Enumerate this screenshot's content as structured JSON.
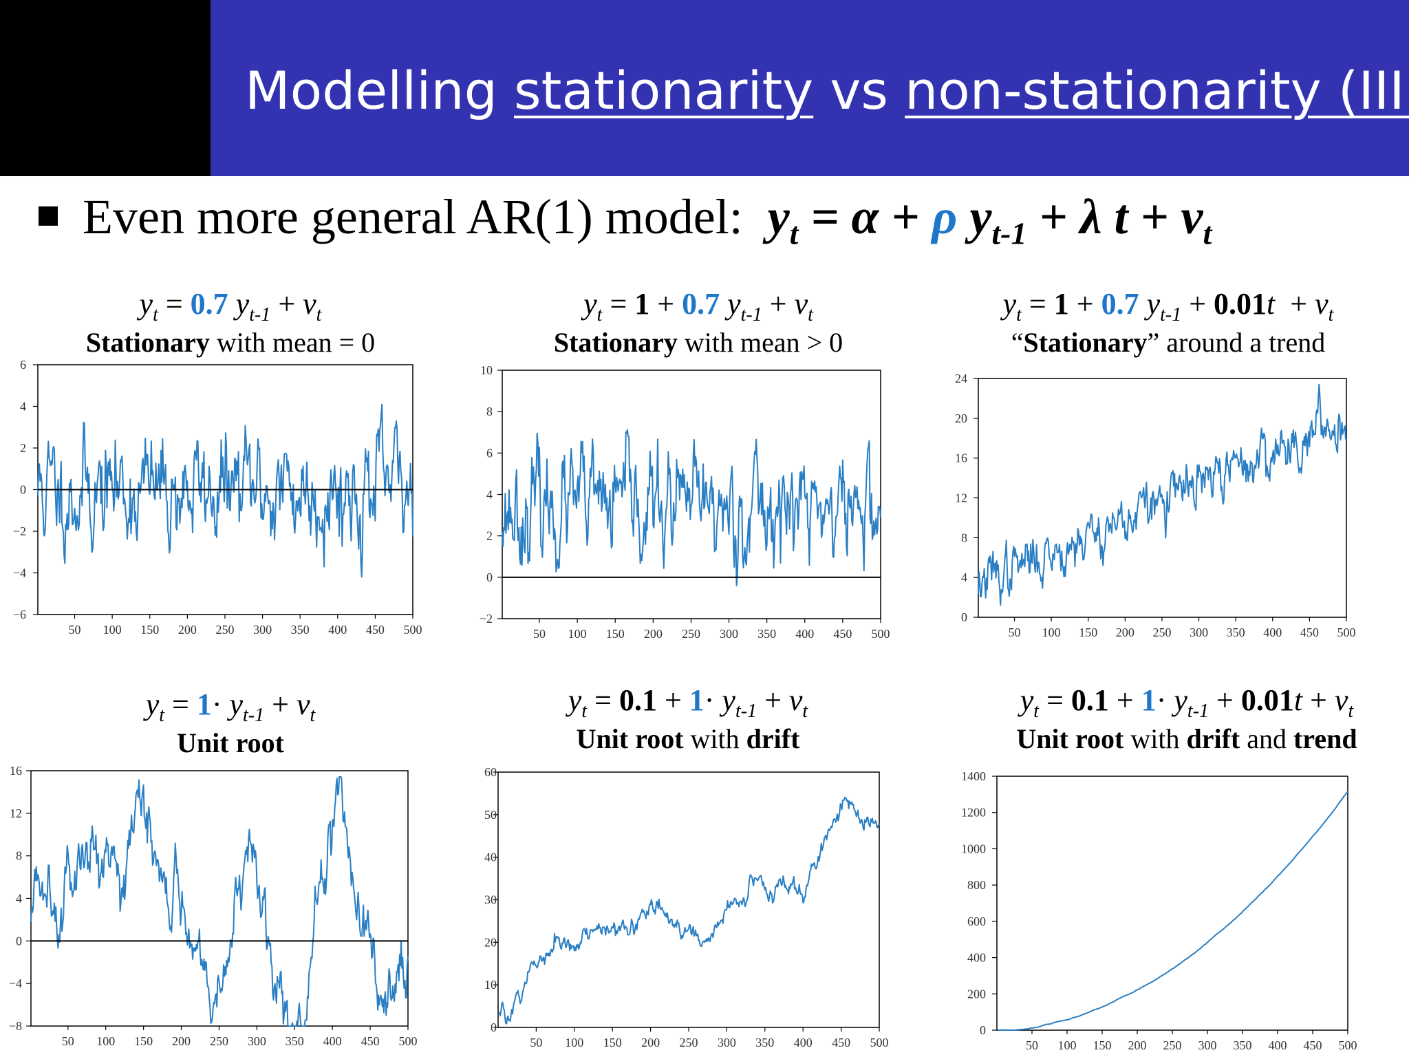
{
  "title": {
    "part1": "Modelling ",
    "u1": "stationarity",
    "part2": " vs ",
    "u2": "non-stationarity (III)"
  },
  "bullet": {
    "text": "Even more general AR(1) model:"
  },
  "colors": {
    "header": "#3333b2",
    "blue": "#1f77c9",
    "series": "#2a7fc4"
  },
  "panels": [
    {
      "desc": {
        "b1": "Stationary",
        "t1": " with mean = 0"
      }
    },
    {
      "desc": {
        "b1": "Stationary",
        "t1": " with mean > 0"
      }
    },
    {
      "desc": {
        "t0": "“",
        "b1": "Stationary",
        "t1": "” around a trend"
      }
    },
    {
      "desc": {
        "b1": "Unit root"
      }
    },
    {
      "desc": {
        "b1": "Unit root",
        "t1": " with ",
        "b2": "drift"
      }
    },
    {
      "desc": {
        "b1": "Unit root",
        "t1": " with ",
        "b2": "drift",
        "t2": " and ",
        "b3": "trend"
      }
    }
  ],
  "chart_data": [
    {
      "type": "line",
      "equation": {
        "rho": "0.7"
      },
      "x": [
        1,
        500
      ],
      "xticks": [
        50,
        100,
        150,
        200,
        250,
        300,
        350,
        400,
        450,
        500
      ],
      "yticks": [
        -6,
        -4,
        -2,
        0,
        2,
        4,
        6
      ],
      "ylim": [
        -6,
        6
      ],
      "zero_line": true,
      "gen": {
        "a": 0,
        "rho": 0.7,
        "lam": 0,
        "sd": 1,
        "y0": 0,
        "seed": 11
      }
    },
    {
      "type": "line",
      "equation": {
        "alpha": "1",
        "rho": "0.7"
      },
      "x": [
        1,
        500
      ],
      "xticks": [
        50,
        100,
        150,
        200,
        250,
        300,
        350,
        400,
        450,
        500
      ],
      "yticks": [
        -2,
        0,
        2,
        4,
        6,
        8,
        10
      ],
      "ylim": [
        -2,
        10
      ],
      "zero_line": true,
      "gen": {
        "a": 1,
        "rho": 0.7,
        "lam": 0,
        "sd": 1,
        "y0": 3.3,
        "seed": 23
      }
    },
    {
      "type": "line",
      "equation": {
        "alpha": "1",
        "rho": "0.7",
        "lambda": "0.01"
      },
      "x": [
        1,
        500
      ],
      "xticks": [
        50,
        100,
        150,
        200,
        250,
        300,
        350,
        400,
        450,
        500
      ],
      "yticks": [
        0,
        4,
        8,
        12,
        16,
        20,
        24
      ],
      "ylim": [
        0,
        24
      ],
      "zero_line": false,
      "gen": {
        "a": 1,
        "rho": 0.7,
        "lam": 0.01,
        "sd": 1,
        "y0": 3.5,
        "seed": 37
      }
    },
    {
      "type": "line",
      "equation": {
        "rho": "1"
      },
      "x": [
        1,
        500
      ],
      "xticks": [
        50,
        100,
        150,
        200,
        250,
        300,
        350,
        400,
        450,
        500
      ],
      "yticks": [
        -8,
        -4,
        0,
        4,
        8,
        12,
        16
      ],
      "ylim": [
        -8,
        16
      ],
      "zero_line": true,
      "anchors": [
        [
          1,
          2
        ],
        [
          40,
          10
        ],
        [
          70,
          7
        ],
        [
          110,
          12
        ],
        [
          160,
          9
        ],
        [
          200,
          8
        ],
        [
          215,
          1
        ],
        [
          240,
          -4
        ],
        [
          270,
          1
        ],
        [
          300,
          6
        ],
        [
          320,
          -1
        ],
        [
          345,
          -5
        ],
        [
          365,
          -7
        ],
        [
          385,
          5
        ],
        [
          410,
          10
        ],
        [
          440,
          2
        ],
        [
          470,
          -5
        ],
        [
          500,
          -3
        ]
      ],
      "noise": 1.2,
      "seed": 5
    },
    {
      "type": "line",
      "equation": {
        "alpha": "0.1",
        "rho": "1"
      },
      "x": [
        1,
        500
      ],
      "xticks": [
        50,
        100,
        150,
        200,
        250,
        300,
        350,
        400,
        450,
        500
      ],
      "yticks": [
        0,
        10,
        20,
        30,
        40,
        50,
        60
      ],
      "ylim": [
        0,
        60
      ],
      "x_from_zero": true,
      "anchors": [
        [
          1,
          2
        ],
        [
          20,
          5
        ],
        [
          50,
          14
        ],
        [
          90,
          17
        ],
        [
          130,
          23
        ],
        [
          180,
          25
        ],
        [
          205,
          29
        ],
        [
          240,
          23
        ],
        [
          265,
          19
        ],
        [
          300,
          27
        ],
        [
          340,
          36
        ],
        [
          370,
          32
        ],
        [
          400,
          33
        ],
        [
          430,
          46
        ],
        [
          455,
          54
        ],
        [
          480,
          47
        ],
        [
          500,
          48
        ]
      ],
      "noise": 0.9,
      "seed": 9
    },
    {
      "type": "line",
      "equation": {
        "alpha": "0.1",
        "rho": "1",
        "lambda": "0.01"
      },
      "x": [
        1,
        500
      ],
      "xticks": [
        50,
        100,
        150,
        200,
        250,
        300,
        350,
        400,
        450,
        500
      ],
      "yticks": [
        0,
        200,
        400,
        600,
        800,
        1000,
        1200,
        1400
      ],
      "ylim": [
        0,
        1400
      ],
      "x_from_zero": true,
      "gen": {
        "a": 0.1,
        "rho": 1,
        "lam": 0.01,
        "sd": 0.6,
        "y0": 0,
        "seed": 3
      }
    }
  ]
}
